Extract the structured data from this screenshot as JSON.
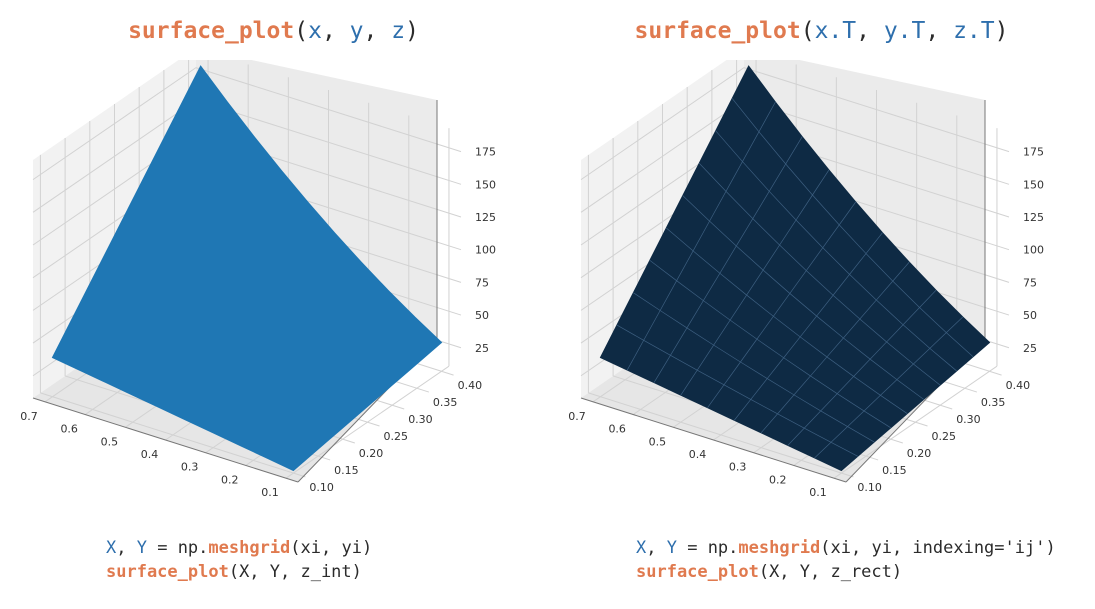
{
  "chart_data": [
    {
      "type": "surface",
      "title": {
        "fn": "surface_plot",
        "open": "(",
        "args": [
          "x",
          "y",
          "z"
        ],
        "sep": ", ",
        "close": ")"
      },
      "x_ticks": [
        "0.7",
        "0.6",
        "0.5",
        "0.4",
        "0.3",
        "0.2",
        "0.1"
      ],
      "y_ticks": [
        "0.10",
        "0.15",
        "0.20",
        "0.25",
        "0.30",
        "0.35",
        "0.40"
      ],
      "z_ticks": [
        "25",
        "50",
        "75",
        "100",
        "125",
        "150",
        "175"
      ],
      "xlim": [
        0.07,
        0.73
      ],
      "ylim": [
        0.085,
        0.415
      ],
      "zlim": [
        8,
        190
      ],
      "z_corners": {
        "x_max_y_min": 38,
        "x_max_y_max": 183,
        "x_min_y_min": 10,
        "x_min_y_max": 30
      },
      "surface_color": "#1f77b4",
      "wireframe": false,
      "code": {
        "line1": [
          "X",
          ", ",
          "Y",
          " = np.",
          "meshgrid",
          "(xi, yi)"
        ],
        "line2": [
          "surface_plot",
          "(X, Y, z_int)"
        ]
      }
    },
    {
      "type": "surface",
      "title": {
        "fn": "surface_plot",
        "open": "(",
        "args": [
          "x.T",
          "y.T",
          "z.T"
        ],
        "sep": ", ",
        "close": ")"
      },
      "x_ticks": [
        "0.7",
        "0.6",
        "0.5",
        "0.4",
        "0.3",
        "0.2",
        "0.1"
      ],
      "y_ticks": [
        "0.10",
        "0.15",
        "0.20",
        "0.25",
        "0.30",
        "0.35",
        "0.40"
      ],
      "z_ticks": [
        "25",
        "50",
        "75",
        "100",
        "125",
        "150",
        "175"
      ],
      "xlim": [
        0.07,
        0.73
      ],
      "ylim": [
        0.085,
        0.415
      ],
      "zlim": [
        8,
        190
      ],
      "z_corners": {
        "x_max_y_min": 38,
        "x_max_y_max": 183,
        "x_min_y_min": 10,
        "x_min_y_max": 30
      },
      "surface_color": "#0e2a44",
      "wireframe": true,
      "code": {
        "line1": [
          "X",
          ", ",
          "Y",
          " = np.",
          "meshgrid",
          "(xi, yi, indexing='ij')"
        ],
        "line2": [
          "surface_plot",
          "(X, Y, z_rect)"
        ]
      }
    }
  ]
}
